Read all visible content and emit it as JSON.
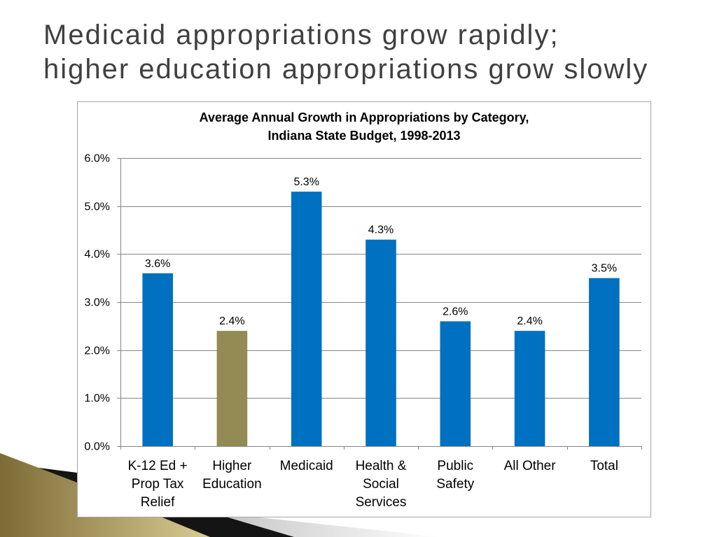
{
  "slide": {
    "title_line_1": "Medicaid appropriations grow rapidly;",
    "title_line_2": "higher education appropriations grow slowly"
  },
  "colors": {
    "title_text": "#404040",
    "chart_frame_border": "#A6A6A6",
    "gridline": "#868686",
    "axis_line": "#868686",
    "ribbon_gold_dark": "#7D6B35",
    "ribbon_gold_light": "#D9CB94",
    "ribbon_black": "#141414",
    "ribbon_gray": "#8C8C8C"
  },
  "chart_data": {
    "type": "bar",
    "title": "Average Annual Growth in Appropriations by Category,",
    "subtitle": "Indiana State Budget, 1998-2013",
    "xlabel": "",
    "ylabel": "",
    "categories": [
      "K-12 Ed + Prop Tax Relief",
      "Higher Education",
      "Medicaid",
      "Health & Social Services",
      "Public Safety",
      "All Other",
      "Total"
    ],
    "values": [
      3.6,
      2.4,
      5.3,
      4.3,
      2.6,
      2.4,
      3.5
    ],
    "data_labels": [
      "3.6%",
      "2.4%",
      "5.3%",
      "4.3%",
      "2.6%",
      "2.4%",
      "3.5%"
    ],
    "bar_colors": [
      "#0070C0",
      "#948A54",
      "#0070C0",
      "#0070C0",
      "#0070C0",
      "#0070C0",
      "#0070C0"
    ],
    "ylim": [
      0,
      6
    ],
    "y_ticks": [
      0,
      1,
      2,
      3,
      4,
      5,
      6
    ],
    "y_tick_labels": [
      "0.0%",
      "1.0%",
      "2.0%",
      "3.0%",
      "4.0%",
      "5.0%",
      "6.0%"
    ],
    "grid": true,
    "legend": "none"
  }
}
